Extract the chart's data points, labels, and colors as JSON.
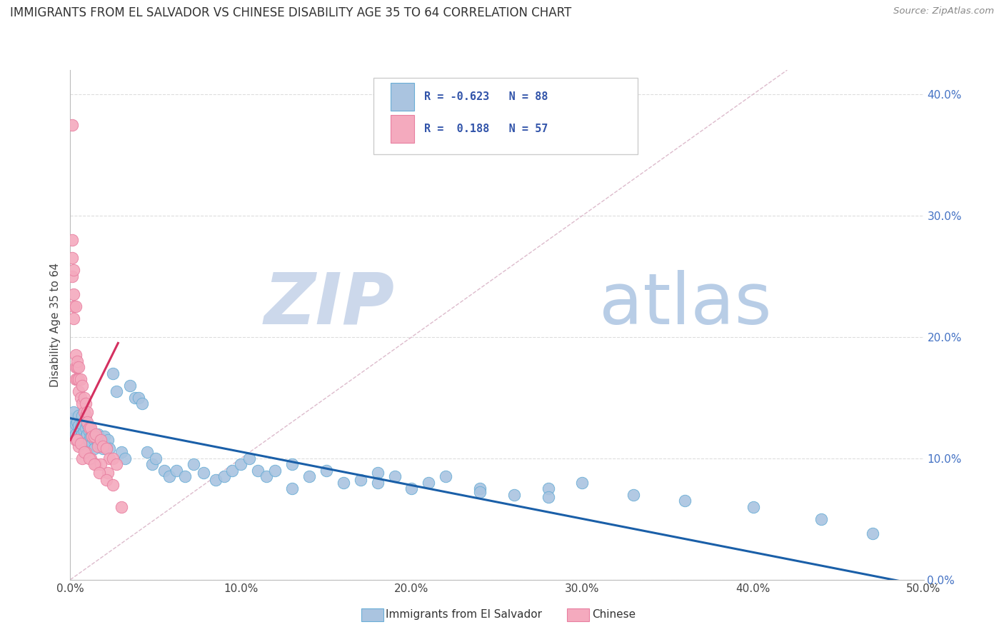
{
  "title": "IMMIGRANTS FROM EL SALVADOR VS CHINESE DISABILITY AGE 35 TO 64 CORRELATION CHART",
  "source": "Source: ZipAtlas.com",
  "ylabel": "Disability Age 35 to 64",
  "xlim": [
    0,
    0.5
  ],
  "ylim": [
    0,
    0.42
  ],
  "xticks": [
    0.0,
    0.1,
    0.2,
    0.3,
    0.4,
    0.5
  ],
  "yticks": [
    0.0,
    0.1,
    0.2,
    0.3,
    0.4
  ],
  "ytick_labels_right": [
    "0.0%",
    "10.0%",
    "20.0%",
    "30.0%",
    "40.0%"
  ],
  "xtick_labels": [
    "0.0%",
    "10.0%",
    "20.0%",
    "30.0%",
    "40.0%",
    "50.0%"
  ],
  "series1_label": "Immigrants from El Salvador",
  "series2_label": "Chinese",
  "series1_color": "#aac4e0",
  "series2_color": "#f4aabe",
  "series1_edge": "#6aaed6",
  "series2_edge": "#e87fa0",
  "trend1_color": "#1a5fa8",
  "trend2_color": "#d43060",
  "ref_line_color": "#c8c8c8",
  "watermark_zip_color": "#c5d8ee",
  "watermark_atlas_color": "#c5d8ee",
  "background_color": "#ffffff",
  "blue_scatter_x": [
    0.001,
    0.002,
    0.002,
    0.003,
    0.003,
    0.004,
    0.004,
    0.005,
    0.005,
    0.005,
    0.006,
    0.006,
    0.007,
    0.007,
    0.007,
    0.008,
    0.008,
    0.009,
    0.009,
    0.01,
    0.01,
    0.01,
    0.011,
    0.011,
    0.012,
    0.012,
    0.013,
    0.013,
    0.014,
    0.014,
    0.015,
    0.016,
    0.016,
    0.017,
    0.018,
    0.019,
    0.02,
    0.021,
    0.022,
    0.023,
    0.025,
    0.027,
    0.03,
    0.032,
    0.035,
    0.038,
    0.04,
    0.042,
    0.045,
    0.048,
    0.05,
    0.055,
    0.058,
    0.062,
    0.067,
    0.072,
    0.078,
    0.085,
    0.09,
    0.095,
    0.1,
    0.105,
    0.11,
    0.115,
    0.12,
    0.13,
    0.14,
    0.15,
    0.16,
    0.17,
    0.18,
    0.19,
    0.2,
    0.21,
    0.22,
    0.24,
    0.26,
    0.28,
    0.3,
    0.33,
    0.36,
    0.4,
    0.44,
    0.47,
    0.13,
    0.18,
    0.24,
    0.28
  ],
  "blue_scatter_y": [
    0.133,
    0.125,
    0.138,
    0.12,
    0.128,
    0.115,
    0.13,
    0.12,
    0.127,
    0.135,
    0.118,
    0.125,
    0.12,
    0.128,
    0.135,
    0.115,
    0.122,
    0.118,
    0.125,
    0.112,
    0.12,
    0.128,
    0.115,
    0.122,
    0.11,
    0.118,
    0.112,
    0.12,
    0.115,
    0.108,
    0.118,
    0.112,
    0.12,
    0.115,
    0.11,
    0.108,
    0.118,
    0.11,
    0.115,
    0.108,
    0.17,
    0.155,
    0.105,
    0.1,
    0.16,
    0.15,
    0.15,
    0.145,
    0.105,
    0.095,
    0.1,
    0.09,
    0.085,
    0.09,
    0.085,
    0.095,
    0.088,
    0.082,
    0.085,
    0.09,
    0.095,
    0.1,
    0.09,
    0.085,
    0.09,
    0.095,
    0.085,
    0.09,
    0.08,
    0.082,
    0.088,
    0.085,
    0.075,
    0.08,
    0.085,
    0.075,
    0.07,
    0.075,
    0.08,
    0.07,
    0.065,
    0.06,
    0.05,
    0.038,
    0.075,
    0.08,
    0.072,
    0.068
  ],
  "pink_scatter_x": [
    0.001,
    0.001,
    0.001,
    0.001,
    0.002,
    0.002,
    0.002,
    0.002,
    0.003,
    0.003,
    0.003,
    0.003,
    0.004,
    0.004,
    0.004,
    0.005,
    0.005,
    0.005,
    0.006,
    0.006,
    0.007,
    0.007,
    0.008,
    0.008,
    0.009,
    0.009,
    0.01,
    0.01,
    0.011,
    0.012,
    0.013,
    0.014,
    0.015,
    0.016,
    0.018,
    0.019,
    0.021,
    0.023,
    0.025,
    0.027,
    0.03,
    0.003,
    0.005,
    0.007,
    0.009,
    0.012,
    0.015,
    0.018,
    0.022,
    0.004,
    0.006,
    0.008,
    0.011,
    0.014,
    0.017,
    0.021,
    0.025
  ],
  "pink_scatter_y": [
    0.375,
    0.28,
    0.265,
    0.25,
    0.255,
    0.235,
    0.225,
    0.215,
    0.225,
    0.185,
    0.175,
    0.165,
    0.175,
    0.165,
    0.18,
    0.175,
    0.165,
    0.155,
    0.165,
    0.15,
    0.16,
    0.145,
    0.15,
    0.138,
    0.145,
    0.135,
    0.138,
    0.13,
    0.125,
    0.125,
    0.118,
    0.118,
    0.12,
    0.11,
    0.115,
    0.11,
    0.108,
    0.1,
    0.1,
    0.095,
    0.06,
    0.115,
    0.11,
    0.1,
    0.105,
    0.1,
    0.095,
    0.095,
    0.088,
    0.115,
    0.112,
    0.105,
    0.1,
    0.095,
    0.088,
    0.082,
    0.078
  ],
  "blue_trend_x": [
    0.0,
    0.5
  ],
  "blue_trend_y": [
    0.133,
    -0.005
  ],
  "pink_trend_x": [
    0.0,
    0.028
  ],
  "pink_trend_y": [
    0.115,
    0.195
  ]
}
